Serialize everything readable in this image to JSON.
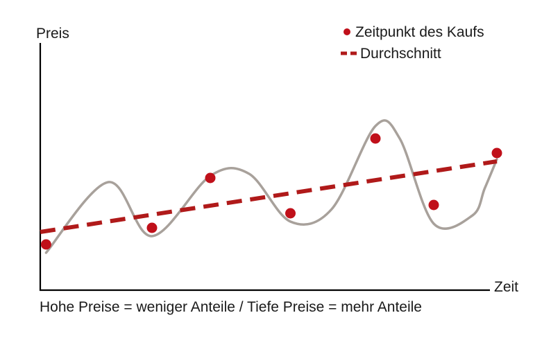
{
  "chart_data": {
    "type": "line",
    "xlabel": "Zeit",
    "ylabel": "Preis",
    "caption": "Hohe Preise = weniger Anteile / Tiefe Preise = mehr Anteile",
    "xlim": [
      0,
      10
    ],
    "ylim": [
      0,
      10
    ],
    "price_curve": {
      "name": "Preis",
      "color": "#a8a19b",
      "x": [
        0.12,
        1.4,
        2.3,
        3.5,
        4.3,
        5.15,
        6.0,
        6.9,
        7.4,
        8.1,
        8.9,
        9.15,
        9.4
      ],
      "y": [
        1.8,
        5.2,
        2.6,
        5.5,
        5.6,
        3.3,
        3.9,
        7.9,
        7.3,
        3.2,
        3.6,
        4.9,
        6.3
      ]
    },
    "series": [
      {
        "name": "Zeitpunkt des Kaufs",
        "kind": "scatter",
        "color": "#c0101a",
        "x": [
          0.12,
          2.3,
          3.5,
          5.15,
          6.9,
          8.1,
          9.4
        ],
        "y": [
          2.2,
          3.0,
          5.4,
          3.7,
          7.3,
          4.1,
          6.6
        ]
      },
      {
        "name": "Durchschnitt",
        "kind": "dashed-line",
        "color": "#b01a1a",
        "x": [
          0.0,
          9.4
        ],
        "y": [
          2.8,
          6.2
        ]
      }
    ],
    "legend_position": "top-right",
    "grid": false
  }
}
